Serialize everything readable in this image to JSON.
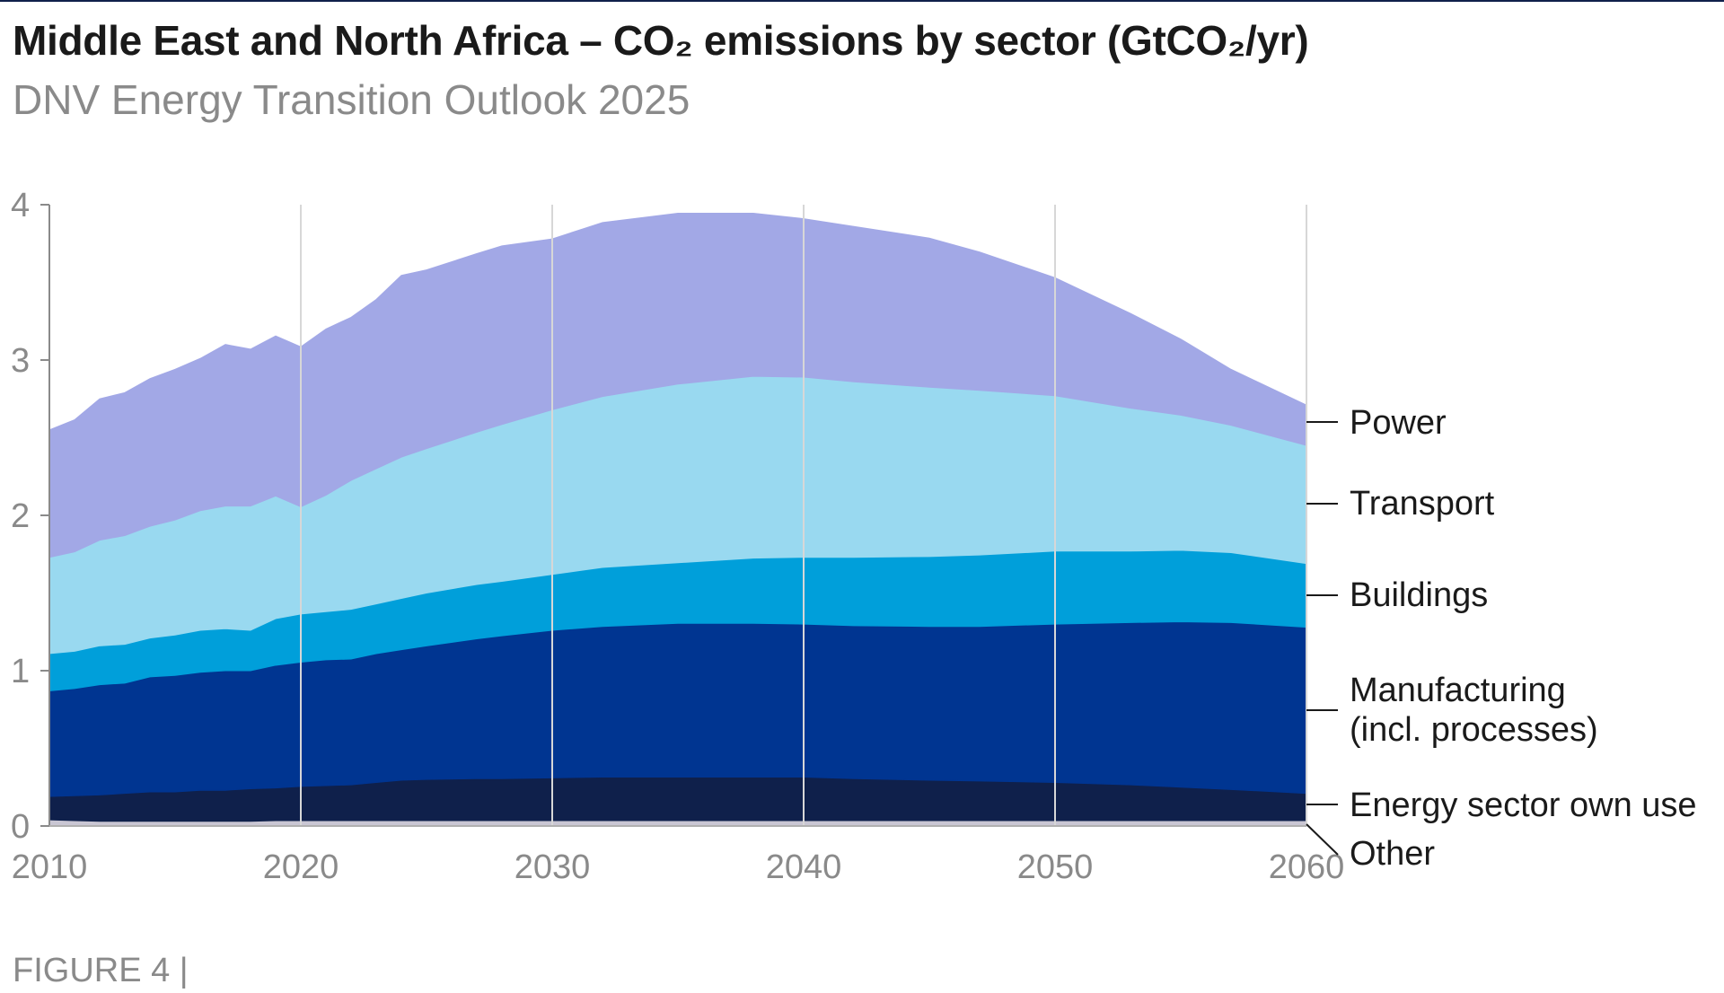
{
  "header": {
    "title": "Middle East and North Africa – CO₂ emissions by sector (GtCO₂/yr)",
    "subtitle": "DNV Energy Transition Outlook 2025"
  },
  "footer": {
    "figure_label": "FIGURE 4 |"
  },
  "chart_data": {
    "type": "area",
    "stacked": true,
    "title": "Middle East and North Africa – CO₂ emissions by sector (GtCO₂/yr)",
    "subtitle": "DNV Energy Transition Outlook 2025",
    "xlabel": "",
    "ylabel": "GtCO₂/yr",
    "xlim": [
      2010,
      2060
    ],
    "ylim": [
      0,
      4
    ],
    "x_ticks": [
      2010,
      2020,
      2030,
      2040,
      2050,
      2060
    ],
    "y_ticks": [
      0,
      1,
      2,
      3,
      4
    ],
    "grid": "vertical",
    "legend_position": "right",
    "x": [
      2010,
      2011,
      2012,
      2013,
      2014,
      2015,
      2016,
      2017,
      2018,
      2019,
      2020,
      2021,
      2022,
      2023,
      2024,
      2025,
      2027,
      2028,
      2030,
      2032,
      2035,
      2038,
      2040,
      2042,
      2045,
      2047,
      2050,
      2053,
      2055,
      2057,
      2060
    ],
    "series": [
      {
        "name": "Other",
        "color": "#c9c6d3",
        "values": [
          0.04,
          0.035,
          0.03,
          0.03,
          0.03,
          0.03,
          0.03,
          0.03,
          0.03,
          0.035,
          0.035,
          0.035,
          0.035,
          0.035,
          0.035,
          0.035,
          0.035,
          0.035,
          0.035,
          0.035,
          0.035,
          0.035,
          0.035,
          0.035,
          0.035,
          0.035,
          0.035,
          0.035,
          0.035,
          0.035,
          0.035
        ]
      },
      {
        "name": "Energy sector own use",
        "color": "#0f204b",
        "values": [
          0.15,
          0.16,
          0.17,
          0.18,
          0.19,
          0.19,
          0.2,
          0.2,
          0.21,
          0.21,
          0.22,
          0.225,
          0.23,
          0.245,
          0.26,
          0.265,
          0.27,
          0.27,
          0.275,
          0.28,
          0.28,
          0.28,
          0.28,
          0.27,
          0.26,
          0.255,
          0.245,
          0.23,
          0.215,
          0.2,
          0.175
        ]
      },
      {
        "name": "Manufacturing (incl. processes)",
        "color": "#003591",
        "values": [
          0.68,
          0.69,
          0.71,
          0.71,
          0.74,
          0.75,
          0.76,
          0.77,
          0.76,
          0.79,
          0.8,
          0.81,
          0.81,
          0.83,
          0.84,
          0.86,
          0.9,
          0.92,
          0.95,
          0.97,
          0.99,
          0.99,
          0.985,
          0.985,
          0.99,
          0.995,
          1.02,
          1.045,
          1.065,
          1.075,
          1.07
        ]
      },
      {
        "name": "Buildings",
        "color": "#009fda",
        "values": [
          0.24,
          0.24,
          0.25,
          0.25,
          0.25,
          0.26,
          0.27,
          0.27,
          0.26,
          0.3,
          0.31,
          0.31,
          0.32,
          0.32,
          0.33,
          0.34,
          0.35,
          0.35,
          0.36,
          0.38,
          0.39,
          0.42,
          0.43,
          0.44,
          0.45,
          0.46,
          0.47,
          0.46,
          0.46,
          0.45,
          0.41
        ]
      },
      {
        "name": "Transport",
        "color": "#99d9f0",
        "values": [
          0.62,
          0.64,
          0.68,
          0.7,
          0.72,
          0.74,
          0.77,
          0.79,
          0.8,
          0.79,
          0.69,
          0.75,
          0.83,
          0.87,
          0.91,
          0.93,
          0.98,
          1.01,
          1.06,
          1.1,
          1.15,
          1.17,
          1.16,
          1.13,
          1.09,
          1.06,
          1.0,
          0.92,
          0.87,
          0.82,
          0.76
        ]
      },
      {
        "name": "Power",
        "color": "#a2a8e6",
        "values": [
          0.82,
          0.85,
          0.91,
          0.92,
          0.95,
          0.97,
          0.98,
          1.04,
          1.01,
          1.03,
          1.03,
          1.07,
          1.05,
          1.09,
          1.17,
          1.15,
          1.15,
          1.15,
          1.1,
          1.12,
          1.1,
          1.05,
          1.02,
          1.0,
          0.96,
          0.89,
          0.76,
          0.61,
          0.49,
          0.36,
          0.26
        ]
      }
    ],
    "legend_labels": {
      "power": "Power",
      "transport": "Transport",
      "buildings": "Buildings",
      "manufacturing_line1": "Manufacturing",
      "manufacturing_line2": "(incl. processes)",
      "energy_own_use": "Energy sector own use",
      "other": "Other"
    }
  }
}
